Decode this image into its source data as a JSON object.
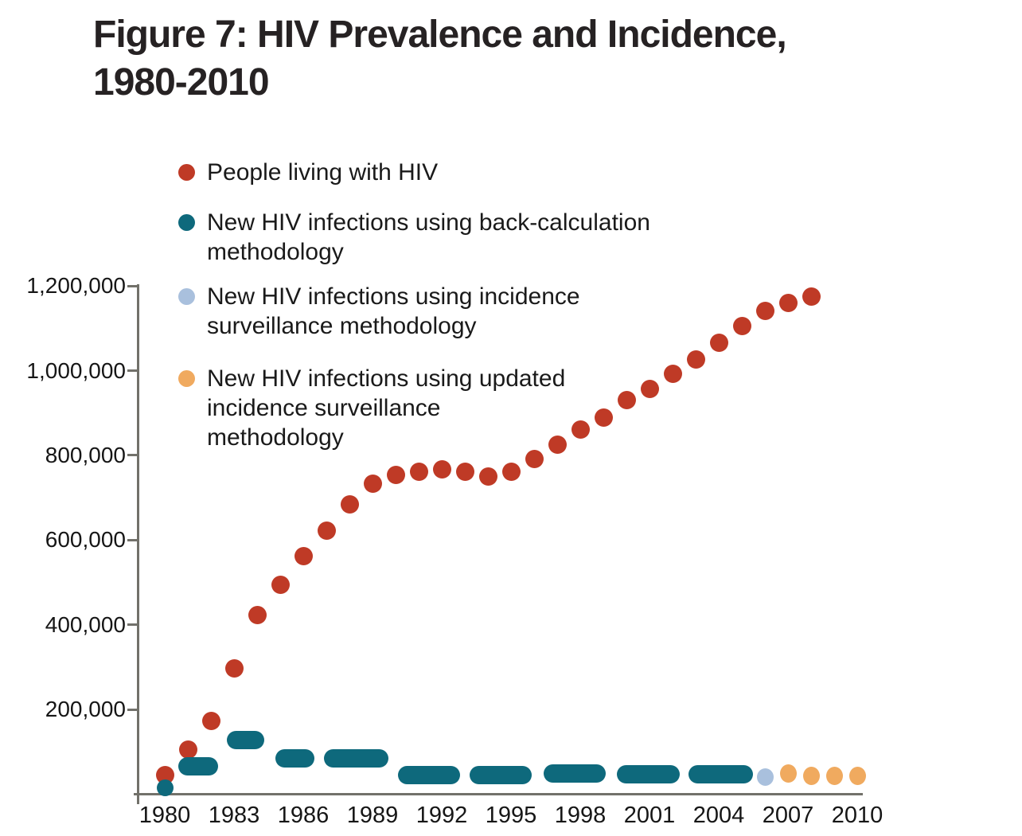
{
  "figure": {
    "title_line1": "Figure 7: HIV Prevalence and Incidence,",
    "title_line2": "1980-2010"
  },
  "legend": {
    "items": [
      {
        "id": "people-living-with-hiv",
        "color": "#bf3a26",
        "lines": [
          "People living with HIV"
        ]
      },
      {
        "id": "new-infections-back-calculation",
        "color": "#0e697c",
        "lines": [
          "New HIV infections using back-calculation",
          "methodology"
        ]
      },
      {
        "id": "new-infections-incidence-surveillance",
        "color": "#a9c0dd",
        "lines": [
          "New HIV infections using incidence",
          "surveillance methodology"
        ]
      },
      {
        "id": "new-infections-updated-incidence-surveillance",
        "color": "#f0aa5f",
        "lines": [
          "New HIV infections using updated",
          "incidence surveillance",
          "methodology"
        ]
      }
    ]
  },
  "chart_data": {
    "type": "scatter",
    "title": "Figure 7: HIV Prevalence and Incidence, 1980-2010",
    "xlabel": "",
    "ylabel": "",
    "grid": false,
    "legend_position": "upper-left",
    "x_axis": {
      "tick_years": [
        1980,
        1983,
        1986,
        1989,
        1992,
        1995,
        1998,
        2001,
        2004,
        2007,
        2010
      ],
      "range": [
        1979,
        2010.5
      ]
    },
    "y_axis": {
      "range": [
        0,
        1240000
      ],
      "ticks": [
        {
          "value": 1200000,
          "label": "1,200,000"
        },
        {
          "value": 1000000,
          "label": "1,000,000"
        },
        {
          "value": 800000,
          "label": "800,000"
        },
        {
          "value": 600000,
          "label": "600,000"
        },
        {
          "value": 400000,
          "label": "400,000"
        },
        {
          "value": 200000,
          "label": "200,000"
        }
      ]
    },
    "series": [
      {
        "name": "People living with HIV",
        "marker": "circle",
        "color": "#bf3a26",
        "years": [
          1980,
          1981,
          1982,
          1983,
          1984,
          1985,
          1986,
          1987,
          1988,
          1989,
          1990,
          1991,
          1992,
          1993,
          1994,
          1995,
          1996,
          1997,
          1998,
          1999,
          2000,
          2001,
          2002,
          2003,
          2004,
          2005,
          2006,
          2007,
          2008
        ],
        "values": [
          45000,
          105000,
          172000,
          297000,
          423000,
          495000,
          562000,
          623000,
          685000,
          734000,
          754000,
          762000,
          766000,
          762000,
          750000,
          762000,
          791000,
          826000,
          860000,
          890000,
          930000,
          957000,
          992000,
          1027000,
          1065000,
          1105000,
          1141000,
          1160000,
          1175000
        ]
      },
      {
        "name": "New HIV infections using back-calculation methodology",
        "marker": "pill",
        "color": "#0e697c",
        "point": {
          "year": 1980,
          "value": 15000
        },
        "ranges": [
          {
            "years": "1981-1982",
            "from": 1980.6,
            "to": 1982.3,
            "value": 65000
          },
          {
            "years": "1983-1984",
            "from": 1982.7,
            "to": 1984.3,
            "value": 128000
          },
          {
            "years": "1985-1986",
            "from": 1984.8,
            "to": 1986.5,
            "value": 84000
          },
          {
            "years": "1987-1989",
            "from": 1986.9,
            "to": 1989.7,
            "value": 84000
          },
          {
            "years": "1990-1992",
            "from": 1990.1,
            "to": 1992.8,
            "value": 45000
          },
          {
            "years": "1993-1995",
            "from": 1993.2,
            "to": 1995.9,
            "value": 45000
          },
          {
            "years": "1996-1998",
            "from": 1996.4,
            "to": 1999.1,
            "value": 48000
          },
          {
            "years": "1999-2001",
            "from": 1999.6,
            "to": 2002.3,
            "value": 47000
          },
          {
            "years": "2002-2004",
            "from": 2002.7,
            "to": 2005.5,
            "value": 47000
          }
        ]
      },
      {
        "name": "New HIV infections using incidence surveillance methodology",
        "marker": "ellipse",
        "color": "#a9c0dd",
        "years": [
          2006
        ],
        "values": [
          41000
        ]
      },
      {
        "name": "New HIV infections using updated incidence surveillance methodology",
        "marker": "ellipse",
        "color": "#f0aa5f",
        "years": [
          2007,
          2008,
          2009,
          2010
        ],
        "values": [
          48000,
          44000,
          43000,
          44000
        ]
      }
    ]
  }
}
